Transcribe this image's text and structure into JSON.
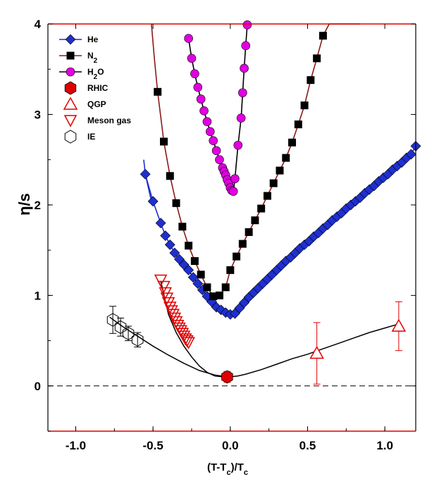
{
  "chart_data": {
    "type": "scatter",
    "xlabel": "(T-T_c)/T_c",
    "ylabel": "η/s",
    "xlim": [
      -1.18,
      1.2
    ],
    "ylim": [
      -0.5,
      4.0
    ],
    "x_ticks": [
      "-1.0",
      "-0.5",
      "0.0",
      "0.5",
      "1.0"
    ],
    "y_ticks": [
      "0",
      "1",
      "2",
      "3",
      "4"
    ],
    "reference_line": {
      "y": 0,
      "style": "dashed"
    },
    "legend": {
      "placement": "top-left"
    },
    "series": [
      {
        "name": "He",
        "sub": "",
        "marker": "diamond",
        "color": "#1f2fd0",
        "line_color": "#1f2fd0",
        "x": [
          -0.55,
          -0.5,
          -0.45,
          -0.42,
          -0.39,
          -0.36,
          -0.33,
          -0.3,
          -0.27,
          -0.24,
          -0.21,
          -0.18,
          -0.15,
          -0.12,
          -0.09,
          -0.06,
          -0.03,
          0.0,
          0.03,
          0.06,
          0.09,
          0.12,
          0.15,
          0.18,
          0.21,
          0.24,
          0.27,
          0.3,
          0.33,
          0.36,
          0.39,
          0.42,
          0.45,
          0.48,
          0.51,
          0.54,
          0.57,
          0.6,
          0.63,
          0.66,
          0.69,
          0.72,
          0.75,
          0.78,
          0.81,
          0.84,
          0.87,
          0.9,
          0.93,
          0.96,
          0.99,
          1.02,
          1.05,
          1.08,
          1.11,
          1.14,
          1.17,
          1.2
        ],
        "y": [
          2.34,
          2.04,
          1.8,
          1.66,
          1.56,
          1.47,
          1.4,
          1.34,
          1.28,
          1.2,
          1.13,
          1.06,
          0.99,
          0.93,
          0.87,
          0.84,
          0.81,
          0.79,
          0.8,
          0.86,
          0.92,
          0.98,
          1.03,
          1.08,
          1.13,
          1.18,
          1.23,
          1.28,
          1.33,
          1.38,
          1.42,
          1.47,
          1.52,
          1.56,
          1.6,
          1.65,
          1.69,
          1.74,
          1.78,
          1.83,
          1.87,
          1.91,
          1.96,
          2.0,
          2.04,
          2.08,
          2.13,
          2.17,
          2.21,
          2.26,
          2.3,
          2.34,
          2.39,
          2.43,
          2.47,
          2.52,
          2.56,
          2.65
        ]
      },
      {
        "name": "N",
        "sub": "2",
        "marker": "square",
        "color": "#000000",
        "line_color": "#8b1a1a",
        "x": [
          -0.47,
          -0.43,
          -0.39,
          -0.35,
          -0.31,
          -0.27,
          -0.23,
          -0.19,
          -0.15,
          -0.11,
          -0.07,
          -0.03,
          0.0,
          0.04,
          0.08,
          0.12,
          0.16,
          0.2,
          0.24,
          0.28,
          0.32,
          0.36,
          0.4,
          0.44,
          0.48,
          0.52,
          0.56,
          0.6,
          0.64,
          0.68,
          0.72,
          0.76,
          0.8,
          0.84
        ],
        "y": [
          3.25,
          2.7,
          2.32,
          2.02,
          1.76,
          1.55,
          1.38,
          1.23,
          1.09,
          0.99,
          1.0,
          1.09,
          1.28,
          1.43,
          1.57,
          1.7,
          1.83,
          1.96,
          2.1,
          2.24,
          2.38,
          2.52,
          2.69,
          2.89,
          3.1,
          3.38,
          3.62,
          3.87,
          4.0,
          4.0,
          4.0,
          4.0,
          4.0,
          4.0
        ]
      },
      {
        "name": "H",
        "sub": "2",
        "name_after": "O",
        "marker": "circle",
        "color": "#e000e0",
        "line_color": "#000000",
        "x": [
          -0.27,
          -0.25,
          -0.23,
          -0.21,
          -0.19,
          -0.17,
          -0.15,
          -0.13,
          -0.11,
          -0.09,
          -0.07,
          -0.05,
          -0.04,
          -0.03,
          -0.02,
          -0.01,
          0.0,
          0.01,
          0.02,
          0.03,
          0.05,
          0.07,
          0.08,
          0.09,
          0.1,
          0.11
        ],
        "y": [
          3.84,
          3.62,
          3.45,
          3.3,
          3.17,
          3.04,
          2.92,
          2.81,
          2.71,
          2.6,
          2.5,
          2.41,
          2.37,
          2.33,
          2.28,
          2.24,
          2.19,
          2.16,
          2.15,
          2.29,
          2.66,
          2.96,
          3.24,
          3.51,
          3.76,
          3.99
        ]
      },
      {
        "name": "RHIC",
        "sub": "",
        "marker": "hexagon-filled",
        "color": "#e00000",
        "x": [
          -0.02
        ],
        "y": [
          0.1
        ],
        "err": [
          0.06
        ]
      },
      {
        "name": "QGP",
        "sub": "",
        "marker": "triangle-up-open",
        "color": "#e00000",
        "x": [
          0.56,
          1.09
        ],
        "y": [
          0.36,
          0.66
        ],
        "err": [
          0.34,
          0.27
        ]
      },
      {
        "name": "Meson gas",
        "sub": "",
        "marker": "triangle-down-open",
        "color": "#e00000",
        "x": [
          -0.45,
          -0.43,
          -0.42,
          -0.41,
          -0.4,
          -0.39,
          -0.38,
          -0.37,
          -0.36,
          -0.35,
          -0.34,
          -0.33,
          -0.32,
          -0.31,
          -0.3,
          -0.29,
          -0.28,
          -0.27
        ],
        "y": [
          1.17,
          1.1,
          1.03,
          0.97,
          0.92,
          0.87,
          0.83,
          0.79,
          0.75,
          0.71,
          0.67,
          0.64,
          0.61,
          0.58,
          0.55,
          0.52,
          0.5,
          0.48
        ]
      },
      {
        "name": "IE",
        "sub": "",
        "marker": "hexagon-open",
        "color": "#000000",
        "x": [
          -0.76,
          -0.71,
          -0.66,
          -0.6
        ],
        "y": [
          0.73,
          0.65,
          0.58,
          0.51
        ],
        "err": [
          0.15,
          0.1,
          0.08,
          0.08
        ]
      }
    ],
    "fit_curve": {
      "x": [
        -0.45,
        -0.4,
        -0.35,
        -0.3,
        -0.25,
        -0.2,
        -0.15,
        -0.1,
        -0.05,
        0.0,
        0.05,
        0.1,
        0.2,
        0.3,
        0.4,
        0.5,
        0.6,
        0.7,
        0.8,
        0.9,
        1.0,
        1.1
      ],
      "y": [
        1.16,
        0.79,
        0.59,
        0.44,
        0.32,
        0.22,
        0.15,
        0.11,
        0.1,
        0.1,
        0.11,
        0.13,
        0.18,
        0.24,
        0.3,
        0.35,
        0.41,
        0.47,
        0.53,
        0.59,
        0.64,
        0.69
      ]
    },
    "fit_curve_left": {
      "x": [
        -0.78,
        -0.7,
        -0.6,
        -0.5,
        -0.4,
        -0.3,
        -0.2,
        -0.1,
        -0.02
      ],
      "y": [
        0.76,
        0.66,
        0.55,
        0.44,
        0.34,
        0.25,
        0.17,
        0.12,
        0.1
      ]
    }
  }
}
